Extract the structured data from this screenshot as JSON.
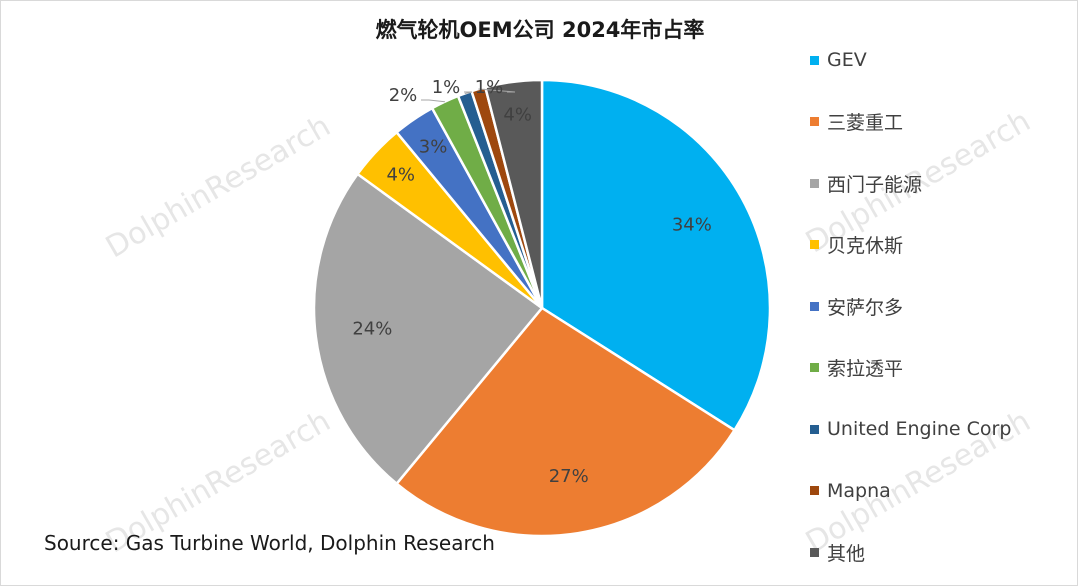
{
  "chart_data": {
    "type": "pie",
    "title": "燃气轮机OEM公司 2024年市占率",
    "source": "Source: Gas Turbine World, Dolphin Research",
    "watermark": "DolphinResearch",
    "start_angle_deg": 0,
    "direction": "clockwise",
    "legend_position": "right",
    "categories": [
      "GEV",
      "三菱重工",
      "西门子能源",
      "贝克休斯",
      "安萨尔多",
      "索拉透平",
      "United Engine Corp",
      "Mapna",
      "其他"
    ],
    "values": [
      34,
      27,
      24,
      4,
      3,
      2,
      1,
      1,
      4
    ],
    "labels": [
      "34%",
      "27%",
      "24%",
      "4%",
      "3%",
      "2%",
      "1%",
      "1%",
      "4%"
    ],
    "colors": [
      "#00b0f0",
      "#ed7d31",
      "#a5a5a5",
      "#ffc000",
      "#4472c4",
      "#70ad47",
      "#255e91",
      "#9e480e",
      "#595959"
    ]
  }
}
